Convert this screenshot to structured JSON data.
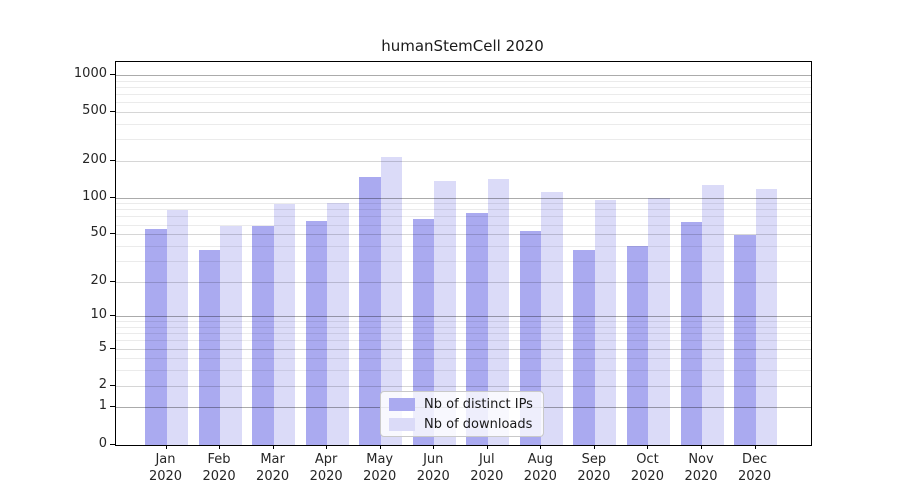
{
  "title": "humanStemCell 2020",
  "colors": {
    "ips_bar": "#aaaaf0",
    "downloads_bar": "#dbdbf8",
    "grid_decade": "rgba(0,0,0,0.33)",
    "grid_labeled": "rgba(0,0,0,0.16)",
    "grid_minor": "rgba(0,0,0,0.08)",
    "axis": "#000000"
  },
  "chart_data": {
    "type": "bar",
    "title": "humanStemCell 2020",
    "categories": [
      "Jan",
      "Feb",
      "Mar",
      "Apr",
      "May",
      "Jun",
      "Jul",
      "Aug",
      "Sep",
      "Oct",
      "Nov",
      "Dec"
    ],
    "category_year": "2020",
    "series": [
      {
        "name": "Nb of distinct IPs",
        "color": "#aaaaf0",
        "values": [
          56,
          37,
          59,
          65,
          148,
          67,
          75,
          54,
          37,
          40,
          64,
          50
        ]
      },
      {
        "name": "Nb of downloads",
        "color": "#dbdbf8",
        "values": [
          80,
          59,
          89,
          92,
          219,
          139,
          143,
          112,
          97,
          100,
          127,
          118
        ]
      }
    ],
    "xlabel": "",
    "ylabel": "",
    "yscale": "log1p",
    "yticks": [
      0,
      1,
      2,
      5,
      10,
      20,
      50,
      100,
      200,
      500,
      1000
    ],
    "minor_yticks": [
      3,
      4,
      6,
      7,
      8,
      9,
      30,
      40,
      60,
      70,
      80,
      90,
      300,
      400,
      600,
      700,
      800,
      900
    ],
    "grid": true,
    "legend_position": "lower-center-inside"
  }
}
